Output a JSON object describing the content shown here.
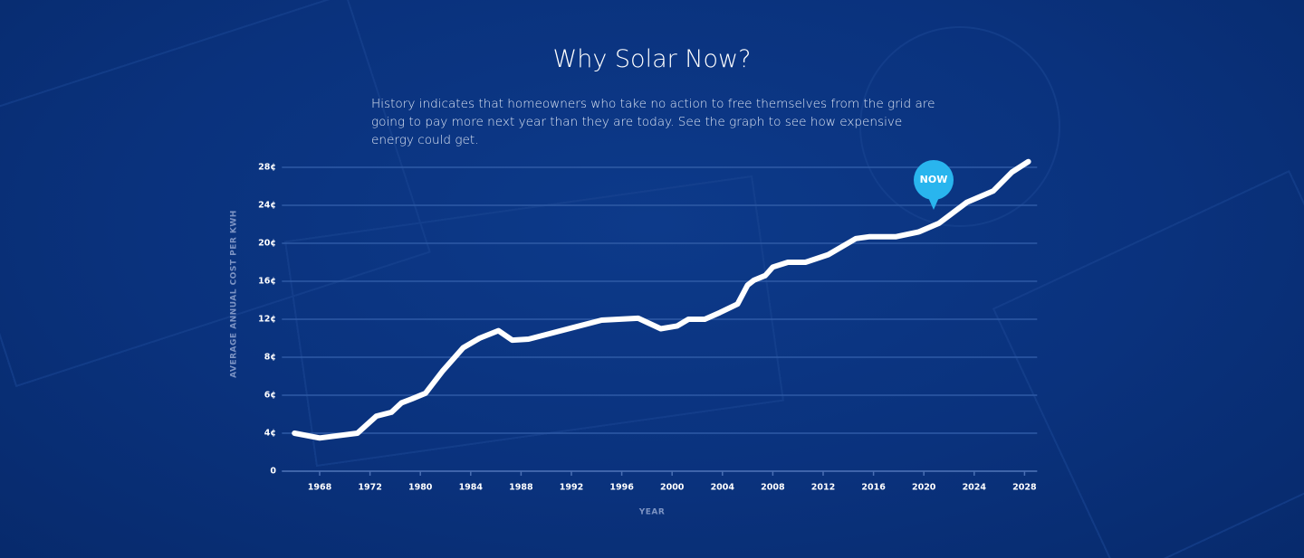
{
  "chart_data": {
    "type": "line",
    "title": "Why Solar Now?",
    "subtitle": "History indicates that homeowners who take no action to free themselves from the grid are going to pay more next year than they are today. See the graph to see how expensive energy could get.",
    "xlabel": "YEAR",
    "ylabel": "AVERAGE ANNUAL COST PER KWH",
    "annotation": "NOW",
    "x": [
      1966,
      1968,
      1971,
      1973,
      1975.4,
      1977,
      1978.6,
      1980.4,
      1981.8,
      1983.4,
      1984.7,
      1986.2,
      1987.3,
      1988.6,
      1994.4,
      1997.3,
      1999.1,
      2000.4,
      2001.3,
      2002.6,
      2003.8,
      2005.2,
      2006,
      2006.5,
      2007.4,
      2008,
      2009.2,
      2010.6,
      2012.4,
      2014.6,
      2015.7,
      2017.8,
      2019.6,
      2021.2,
      2023.4,
      2025.5,
      2027,
      2028.3
    ],
    "series": [
      {
        "name": "Average annual cost per kWh",
        "color": "#ffffff",
        "values": [
          4,
          3.5,
          4,
          4.9,
          5.1,
          5.6,
          5.8,
          6.1,
          7.3,
          9,
          10,
          10.8,
          9.8,
          9.9,
          11.9,
          12.1,
          11,
          11.3,
          12,
          12,
          12.7,
          13.6,
          15.6,
          16.1,
          16.6,
          17.5,
          18,
          18,
          18.8,
          20.5,
          20.7,
          20.7,
          21.2,
          22.1,
          24.3,
          25.5,
          27.5,
          28.6
        ]
      }
    ],
    "xlim": [
      1965,
      2029
    ],
    "xticks": [
      1968,
      1972,
      1980,
      1984,
      1988,
      1992,
      1996,
      2000,
      2004,
      2008,
      2012,
      2016,
      2020,
      2024,
      2028
    ],
    "ylim": [
      0,
      28
    ],
    "yticks": [
      0,
      {
        "value": 4,
        "label": "4¢"
      },
      {
        "value": 6,
        "label": "6¢"
      },
      {
        "value": 8,
        "label": "8¢"
      },
      {
        "value": 12,
        "label": "12¢"
      },
      {
        "value": 16,
        "label": "16¢"
      },
      {
        "value": 20,
        "label": "20¢"
      },
      {
        "value": 24,
        "label": "24¢"
      },
      {
        "value": 28,
        "label": "28¢"
      }
    ],
    "grid": true
  }
}
